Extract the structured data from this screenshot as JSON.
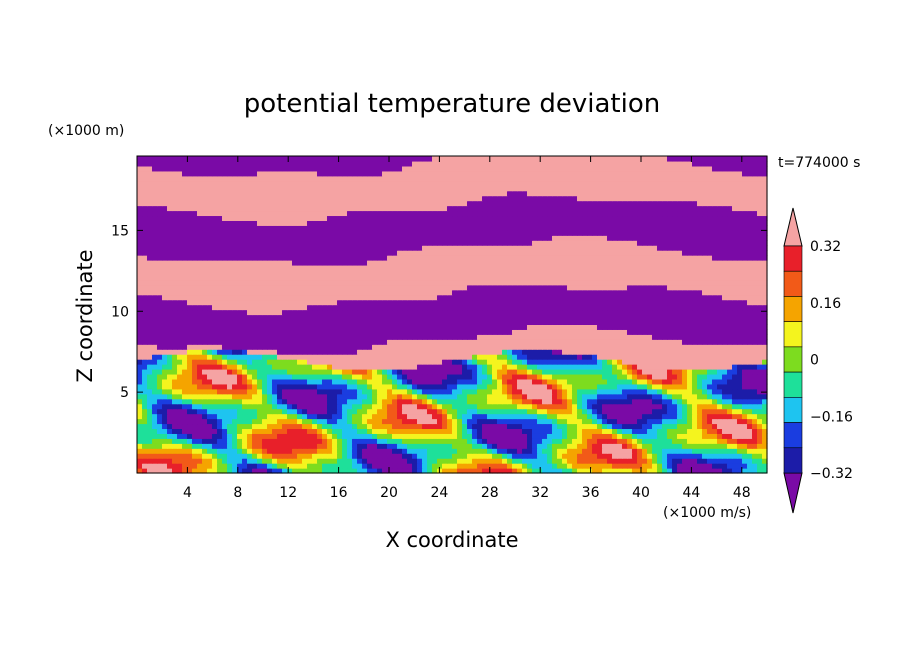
{
  "chart_data": {
    "type": "heatmap",
    "title": "potential temperature deviation",
    "xlabel": "X coordinate",
    "ylabel": "Z coordinate",
    "x_unit": "(×1000 m/s)",
    "y_unit": "(×1000 m)",
    "time_label": "t=774000 s",
    "xlim": [
      0,
      50
    ],
    "ylim": [
      0,
      19.6
    ],
    "x_ticks": [
      4,
      8,
      12,
      16,
      20,
      24,
      28,
      32,
      36,
      40,
      44,
      48
    ],
    "y_ticks": [
      5,
      10,
      15
    ],
    "colorbar": {
      "levels": [
        -0.4,
        -0.32,
        -0.24,
        -0.16,
        -0.08,
        0,
        0.08,
        0.16,
        0.24,
        0.32,
        0.4
      ],
      "colors": [
        "#7a0aa6",
        "#1c1ca8",
        "#1a3de0",
        "#1ec4f0",
        "#1ee09a",
        "#7ddc1f",
        "#f4f41e",
        "#f5a400",
        "#f25a18",
        "#e8202a",
        "#f5a3a3"
      ],
      "tick_labels": [
        "0.32",
        "0.16",
        "0",
        "−0.16",
        "−0.32"
      ],
      "tick_values": [
        0.32,
        0.16,
        0,
        -0.16,
        -0.32
      ],
      "extend": "both"
    },
    "field_summary": {
      "upper_layer_z": [
        7,
        19.6
      ],
      "upper_layer_values": [
        -0.4,
        0.4
      ],
      "lower_layer_z": [
        0,
        7
      ],
      "lower_layer_value_range": [
        -0.4,
        0.4
      ]
    }
  }
}
